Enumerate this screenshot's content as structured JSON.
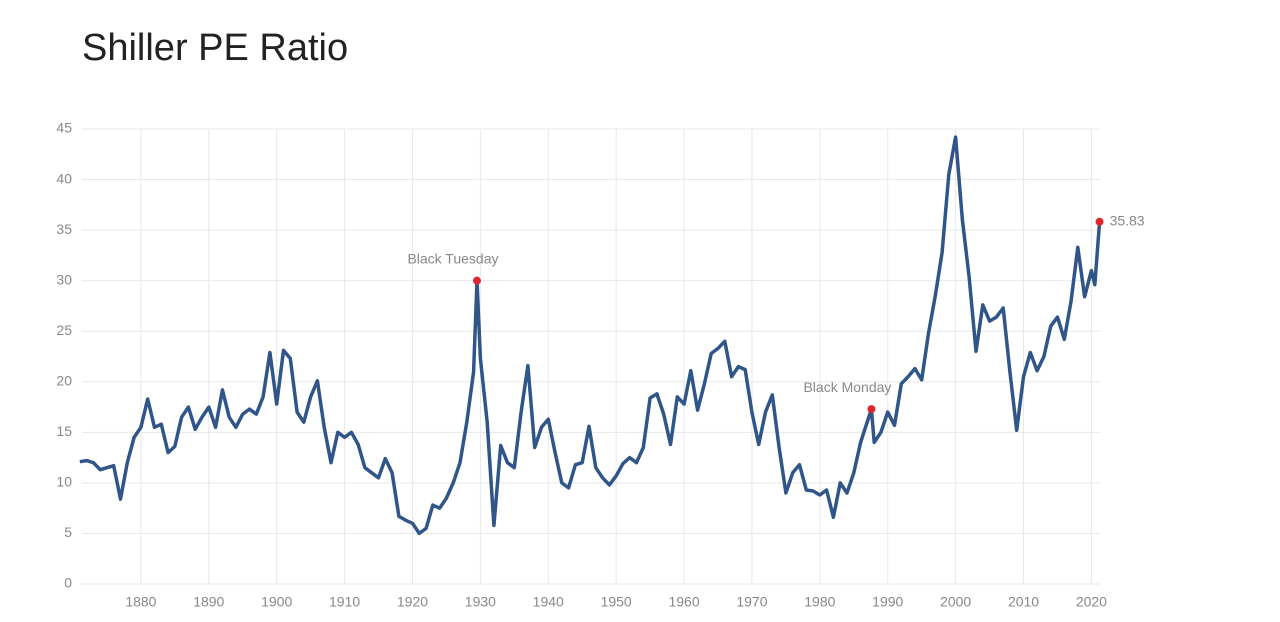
{
  "chart_data": {
    "type": "line",
    "title": "Shiller PE Ratio",
    "x": [
      1871,
      1872,
      1873,
      1874,
      1875,
      1876,
      1877,
      1878,
      1879,
      1880,
      1881,
      1882,
      1883,
      1884,
      1885,
      1886,
      1887,
      1888,
      1889,
      1890,
      1891,
      1892,
      1893,
      1894,
      1895,
      1896,
      1897,
      1898,
      1899,
      1900,
      1901,
      1902,
      1903,
      1904,
      1905,
      1906,
      1907,
      1908,
      1909,
      1910,
      1911,
      1912,
      1913,
      1914,
      1915,
      1916,
      1917,
      1918,
      1919,
      1920,
      1921,
      1922,
      1923,
      1924,
      1925,
      1926,
      1927,
      1928,
      1929,
      1929.5,
      1930,
      1931,
      1932,
      1933,
      1934,
      1935,
      1936,
      1937,
      1938,
      1939,
      1940,
      1941,
      1942,
      1943,
      1944,
      1945,
      1946,
      1947,
      1948,
      1949,
      1950,
      1951,
      1952,
      1953,
      1954,
      1955,
      1956,
      1957,
      1958,
      1959,
      1960,
      1961,
      1962,
      1963,
      1964,
      1965,
      1966,
      1967,
      1968,
      1969,
      1970,
      1971,
      1972,
      1973,
      1974,
      1975,
      1976,
      1977,
      1978,
      1979,
      1980,
      1981,
      1982,
      1983,
      1984,
      1985,
      1986,
      1987.6,
      1988,
      1989,
      1990,
      1991,
      1992,
      1993,
      1994,
      1995,
      1996,
      1997,
      1998,
      1999,
      2000,
      2001,
      2002,
      2003,
      2004,
      2005,
      2006,
      2007,
      2008,
      2009,
      2010,
      2011,
      2012,
      2013,
      2014,
      2015,
      2016,
      2017,
      2018,
      2019,
      2020,
      2020.5,
      2021.2
    ],
    "series": [
      {
        "name": "Shiller PE Ratio",
        "color": "#2f5589",
        "values": [
          12.1,
          12.2,
          12.0,
          11.3,
          11.5,
          11.7,
          8.4,
          12.0,
          14.5,
          15.5,
          18.3,
          15.5,
          15.8,
          13.0,
          13.6,
          16.5,
          17.5,
          15.3,
          16.5,
          17.5,
          15.5,
          19.2,
          16.5,
          15.5,
          16.8,
          17.3,
          16.8,
          18.5,
          22.9,
          17.8,
          23.1,
          22.3,
          17.0,
          16.0,
          18.5,
          20.1,
          15.5,
          12.0,
          15.0,
          14.5,
          15.0,
          13.8,
          11.5,
          11.0,
          10.5,
          12.4,
          11.0,
          6.7,
          6.3,
          6.0,
          5.0,
          5.5,
          7.8,
          7.5,
          8.5,
          10.0,
          12.0,
          16.0,
          21.0,
          30.0,
          22.3,
          16.0,
          5.8,
          13.7,
          12.0,
          11.5,
          17.0,
          21.6,
          13.5,
          15.5,
          16.3,
          13.0,
          10.0,
          9.5,
          11.8,
          12.0,
          15.6,
          11.5,
          10.5,
          9.8,
          10.7,
          11.9,
          12.5,
          12.0,
          13.5,
          18.4,
          18.8,
          16.8,
          13.8,
          18.5,
          17.8,
          21.1,
          17.2,
          19.8,
          22.8,
          23.3,
          24.0,
          20.5,
          21.5,
          21.2,
          17.0,
          13.8,
          17.0,
          18.7,
          13.5,
          9.0,
          11.0,
          11.8,
          9.3,
          9.2,
          8.8,
          9.3,
          6.6,
          10.0,
          9.0,
          11.0,
          14.0,
          17.3,
          14.0,
          15.0,
          17.0,
          15.7,
          19.8,
          20.5,
          21.3,
          20.2,
          24.8,
          28.5,
          32.8,
          40.5,
          44.2,
          36.0,
          30.3,
          23.0,
          27.6,
          26.0,
          26.4,
          27.3,
          21.0,
          15.2,
          20.5,
          22.9,
          21.1,
          22.5,
          25.5,
          26.4,
          24.2,
          28.0,
          33.3,
          28.4,
          31.0,
          29.6,
          35.83
        ]
      }
    ],
    "annotations": [
      {
        "label": "Black Tuesday",
        "x": 1929.5,
        "y": 30.0
      },
      {
        "label": "Black Monday",
        "x": 1987.6,
        "y": 17.3
      },
      {
        "label": "35.83",
        "x": 2021.2,
        "y": 35.83
      }
    ],
    "xlim": [
      1870,
      2022
    ],
    "ylim": [
      0,
      45
    ],
    "xticks": [
      1880,
      1890,
      1900,
      1910,
      1920,
      1930,
      1940,
      1950,
      1960,
      1970,
      1980,
      1990,
      2000,
      2010,
      2020
    ],
    "yticks": [
      0,
      5,
      10,
      15,
      20,
      25,
      30,
      35,
      40,
      45
    ],
    "grid": true
  }
}
